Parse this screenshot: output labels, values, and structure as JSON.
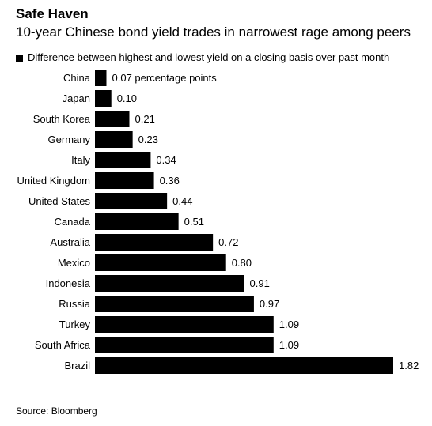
{
  "title": "Safe Haven",
  "subtitle": "10-year Chinese bond yield trades in narrowest rage among peers",
  "source": "Source: Bloomberg",
  "colors": {
    "bar": "#000000",
    "text": "#000000",
    "background": "#ffffff"
  },
  "chart_data": {
    "type": "bar",
    "orientation": "horizontal",
    "categories": [
      "China",
      "Japan",
      "South Korea",
      "Germany",
      "Italy",
      "United Kingdom",
      "United States",
      "Canada",
      "Australia",
      "Mexico",
      "Indonesia",
      "Russia",
      "Turkey",
      "South Africa",
      "Brazil"
    ],
    "series": [
      {
        "name": "Difference between highest and lowest yield on a closing basis over past month",
        "values": [
          0.07,
          0.1,
          0.21,
          0.23,
          0.34,
          0.36,
          0.44,
          0.51,
          0.72,
          0.8,
          0.91,
          0.97,
          1.09,
          1.09,
          1.82
        ]
      }
    ],
    "data_labels": [
      "0.07 percentage points",
      "0.10",
      "0.21",
      "0.23",
      "0.34",
      "0.36",
      "0.44",
      "0.51",
      "0.72",
      "0.80",
      "0.91",
      "0.97",
      "1.09",
      "1.09",
      "1.82"
    ],
    "xlim": [
      0,
      1.82
    ],
    "grid": false,
    "legend": "top-left"
  }
}
